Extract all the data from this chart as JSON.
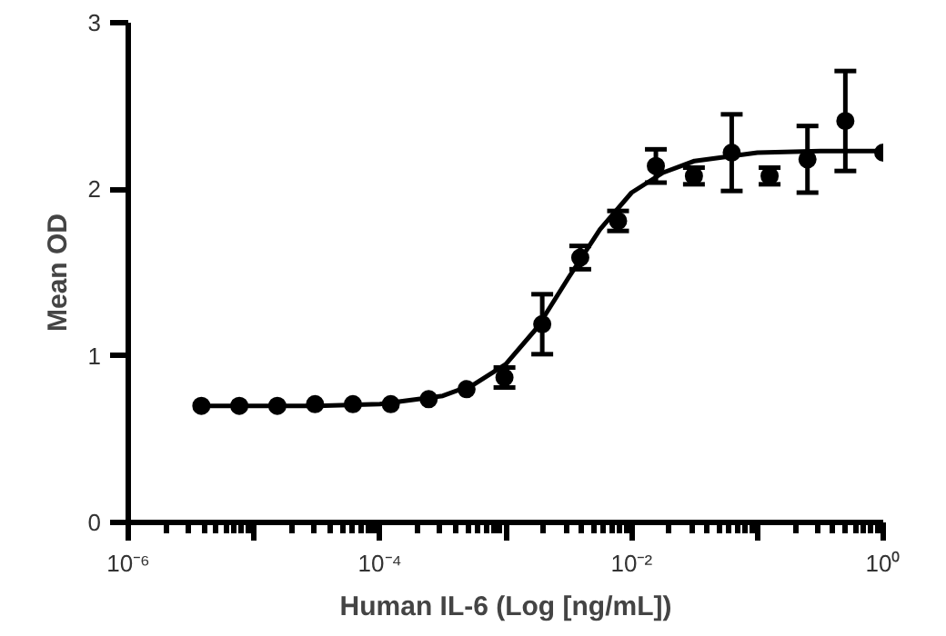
{
  "chart_data": {
    "type": "scatter",
    "xlabel": "Human IL-6 (Log [ng/mL])",
    "ylabel": "Mean OD",
    "log": "x",
    "xlim": [
      1e-06,
      1
    ],
    "ylim": [
      0,
      3
    ],
    "xticks": [
      {
        "value": 1e-06,
        "label": "10⁻⁶"
      },
      {
        "value": 1e-05,
        "label": null
      },
      {
        "value": 0.0001,
        "label": "10⁻⁴"
      },
      {
        "value": 0.001,
        "label": null
      },
      {
        "value": 0.01,
        "label": "10⁻²"
      },
      {
        "value": 0.1,
        "label": null
      },
      {
        "value": 1,
        "label": "10⁰"
      }
    ],
    "yticks": [
      0,
      1,
      2,
      3
    ],
    "grid": false,
    "line_style": "solid",
    "series": [
      {
        "marker": "circle",
        "color": "#000000",
        "x": [
          3.81e-06,
          7.63e-06,
          1.53e-05,
          3.05e-05,
          6.1e-05,
          0.000122,
          0.000244,
          0.000488,
          0.000977,
          0.00195,
          0.00391,
          0.00781,
          0.0156,
          0.0313,
          0.0625,
          0.125,
          0.25,
          0.5,
          1
        ],
        "values": [
          0.7,
          0.7,
          0.7,
          0.71,
          0.71,
          0.71,
          0.74,
          0.8,
          0.87,
          1.19,
          1.59,
          1.81,
          2.14,
          2.08,
          2.22,
          2.08,
          2.18,
          2.41,
          2.22
        ],
        "errors": [
          null,
          null,
          null,
          null,
          null,
          null,
          null,
          null,
          0.06,
          0.18,
          0.07,
          0.06,
          0.1,
          0.05,
          0.23,
          0.05,
          0.2,
          0.3,
          null
        ]
      },
      {
        "type": "line",
        "marker": "none",
        "color": "#000000",
        "x": [
          3.8e-06,
          1e-05,
          3.16e-05,
          0.0001,
          0.000316,
          0.000562,
          0.001,
          0.00178,
          0.00316,
          0.00562,
          0.01,
          0.0178,
          0.0316,
          0.1,
          0.316,
          1
        ],
        "values": [
          0.7,
          0.7,
          0.7,
          0.71,
          0.76,
          0.83,
          0.95,
          1.17,
          1.47,
          1.76,
          1.98,
          2.1,
          2.17,
          2.22,
          2.23,
          2.23
        ]
      }
    ]
  }
}
